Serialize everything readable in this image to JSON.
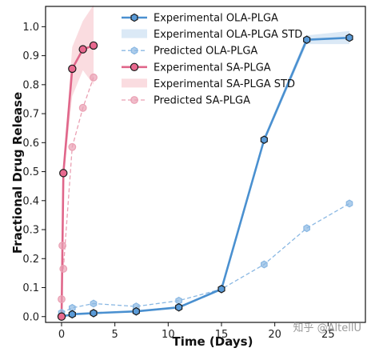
{
  "chart_data": {
    "type": "line",
    "xlabel": "Time (Days)",
    "ylabel": "Fractional Drug Release",
    "xlim": [
      -1.5,
      28.5
    ],
    "ylim": [
      -0.02,
      1.07
    ],
    "xticks": [
      0,
      5,
      10,
      15,
      20,
      25
    ],
    "yticks": [
      0.0,
      0.1,
      0.2,
      0.3,
      0.4,
      0.5,
      0.6,
      0.7,
      0.8,
      0.9,
      1.0
    ],
    "xtick_labels": [
      "0",
      "5",
      "10",
      "15",
      "20",
      "25"
    ],
    "ytick_labels": [
      "0.0",
      "0.1",
      "0.2",
      "0.3",
      "0.4",
      "0.5",
      "0.6",
      "0.7",
      "0.8",
      "0.9",
      "1.0"
    ],
    "grid": false,
    "legend_position": "top-right",
    "series": [
      {
        "name": "Experimental OLA-PLGA",
        "kind": "experimental",
        "color": "#4a90d0",
        "marker": "hexagon",
        "x": [
          0,
          1,
          3,
          7,
          11,
          15,
          19,
          23,
          27
        ],
        "y": [
          0.0,
          0.008,
          0.012,
          0.018,
          0.032,
          0.095,
          0.61,
          0.955,
          0.962
        ]
      },
      {
        "name": "Experimental OLA-PLGA STD",
        "kind": "band",
        "color": "#cfe2f3",
        "x": [
          0,
          1,
          3,
          7,
          11,
          15,
          19,
          23,
          27
        ],
        "lower": [
          0.0,
          0.006,
          0.01,
          0.015,
          0.028,
          0.09,
          0.6,
          0.94,
          0.94
        ],
        "upper": [
          0.0,
          0.01,
          0.014,
          0.021,
          0.036,
          0.1,
          0.62,
          0.97,
          0.985
        ]
      },
      {
        "name": "Predicted OLA-PLGA",
        "kind": "predicted",
        "color": "#8ab8e3",
        "marker": "hexagon",
        "x": [
          0,
          1,
          3,
          7,
          11,
          15,
          19,
          23,
          27
        ],
        "y": [
          0.013,
          0.03,
          0.045,
          0.035,
          0.055,
          0.095,
          0.18,
          0.305,
          0.39
        ]
      },
      {
        "name": "Experimental SA-PLGA",
        "kind": "experimental",
        "color": "#e0668a",
        "marker": "circle",
        "x": [
          0,
          0.17,
          0.5,
          1,
          2,
          3
        ],
        "y": [
          0.0,
          0.495,
          0.855,
          0.922,
          0.935,
          0.935
        ],
        "x_actual": [
          0,
          0.17,
          1,
          2,
          3
        ],
        "y_actual": [
          0.0,
          0.495,
          0.855,
          0.922,
          0.935
        ]
      },
      {
        "name": "Experimental SA-PLGA STD",
        "kind": "band",
        "color": "#f8d0d6",
        "x": [
          0,
          0.17,
          1,
          2,
          3
        ],
        "lower": [
          0.0,
          0.47,
          0.76,
          0.85,
          0.8
        ],
        "upper": [
          0.0,
          0.52,
          0.93,
          1.02,
          1.075
        ]
      },
      {
        "name": "Predicted SA-PLGA",
        "kind": "predicted",
        "color": "#eaa0b3",
        "marker": "circle",
        "x": [
          0,
          0.08,
          0.17,
          1,
          2,
          3
        ],
        "y": [
          0.06,
          0.245,
          0.165,
          0.585,
          0.72,
          0.825
        ]
      }
    ]
  },
  "watermark": "知乎 @AltellU"
}
